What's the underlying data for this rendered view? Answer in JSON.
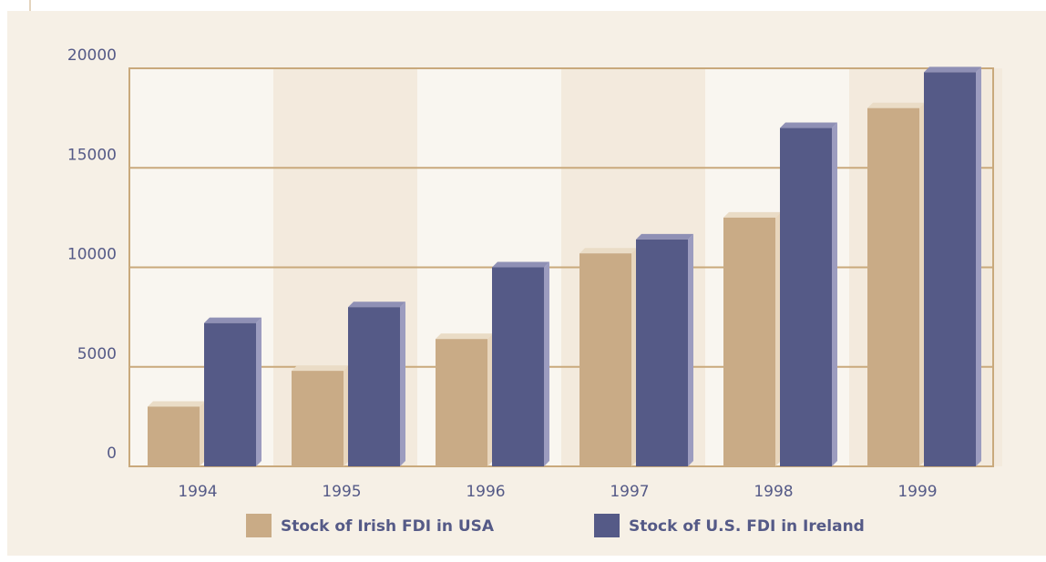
{
  "chart_data": {
    "type": "bar",
    "categories": [
      "1994",
      "1995",
      "1996",
      "1997",
      "1998",
      "1999"
    ],
    "series": [
      {
        "name": "Stock of Irish FDI in USA",
        "color": "#c9ab86",
        "values": [
          3000,
          4800,
          6400,
          10700,
          12500,
          18000
        ]
      },
      {
        "name": "Stock of U.S. FDI in Ireland",
        "color": "#555a87",
        "values": [
          7200,
          8000,
          10000,
          11400,
          17000,
          19800
        ]
      }
    ],
    "ylim": [
      0,
      20000
    ],
    "yticks": [
      0,
      5000,
      10000,
      15000,
      20000
    ],
    "grid": true
  }
}
